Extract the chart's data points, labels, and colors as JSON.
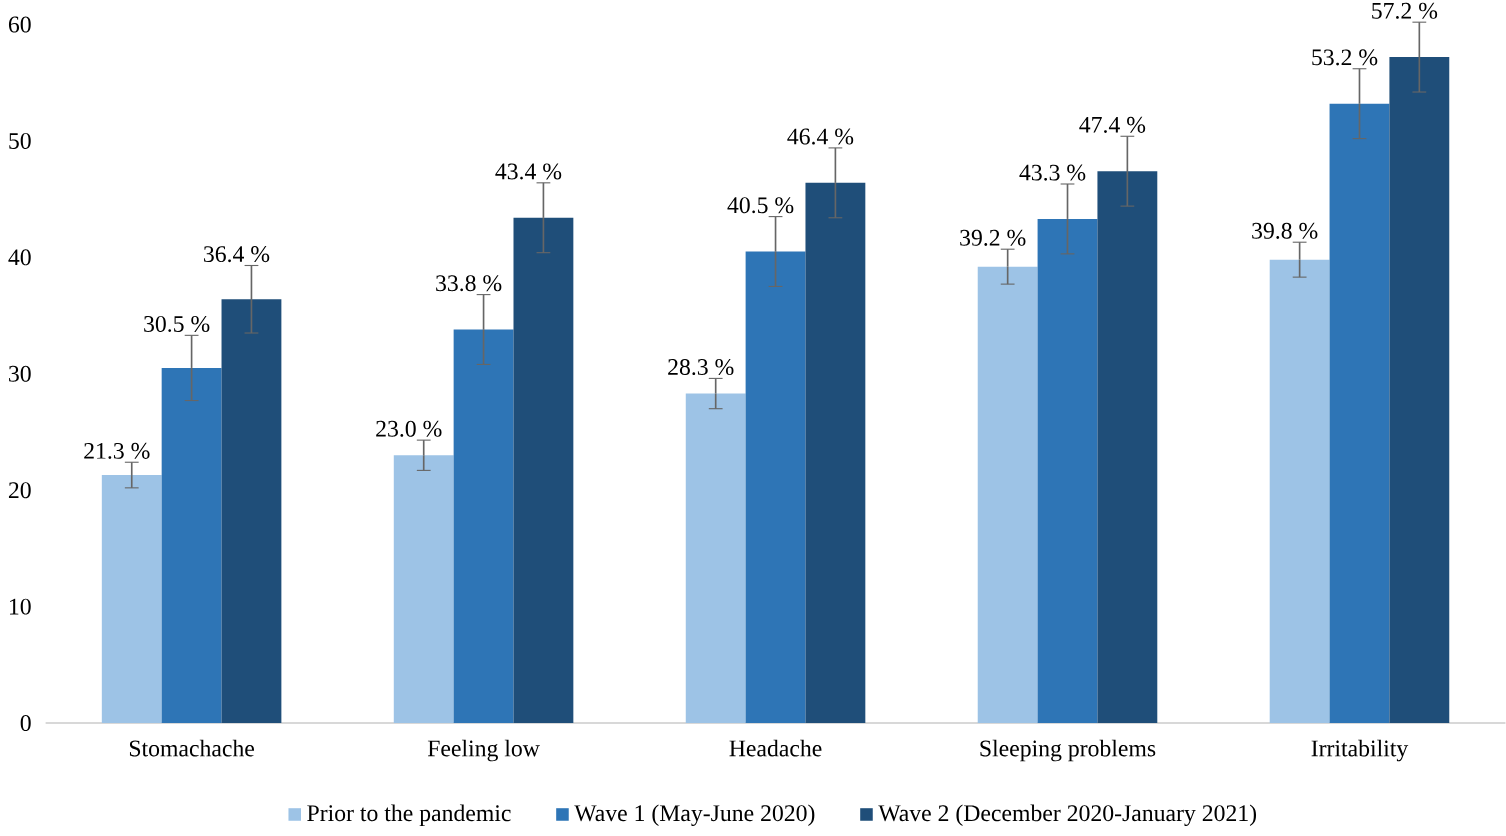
{
  "chart_data": {
    "type": "bar",
    "categories": [
      "Stomachache",
      "Feeling low",
      "Headache",
      "Sleeping problems",
      "Irritability"
    ],
    "series": [
      {
        "name": "Prior to the pandemic",
        "color": "#9dc3e6",
        "values": [
          21.3,
          23.0,
          28.3,
          39.2,
          39.8
        ],
        "errors": [
          1.1,
          1.3,
          1.3,
          1.5,
          1.5
        ],
        "value_labels": [
          "21.3 %",
          "23.0 %",
          "28.3 %",
          "39.2 %",
          "39.8 %"
        ]
      },
      {
        "name": "Wave 1 (May-June 2020)",
        "color": "#2e75b6",
        "values": [
          30.5,
          33.8,
          40.5,
          43.3,
          53.2
        ],
        "errors": [
          2.8,
          3.0,
          3.0,
          3.0,
          3.0
        ],
        "value_labels": [
          "30.5 %",
          "33.8 %",
          "40.5 %",
          "43.3 %",
          "53.2 %"
        ]
      },
      {
        "name": "Wave 2 (December 2020-January 2021)",
        "color": "#1f4e79",
        "values": [
          36.4,
          43.4,
          46.4,
          47.4,
          57.2
        ],
        "errors": [
          2.9,
          3.0,
          3.0,
          3.0,
          3.0
        ],
        "value_labels": [
          "36.4 %",
          "43.4 %",
          "46.4 %",
          "47.4 %",
          "57.2 %"
        ]
      }
    ],
    "ylim": [
      0,
      60
    ],
    "yticks": [
      0,
      10,
      20,
      30,
      40,
      50,
      60
    ],
    "legend": "bottom"
  }
}
